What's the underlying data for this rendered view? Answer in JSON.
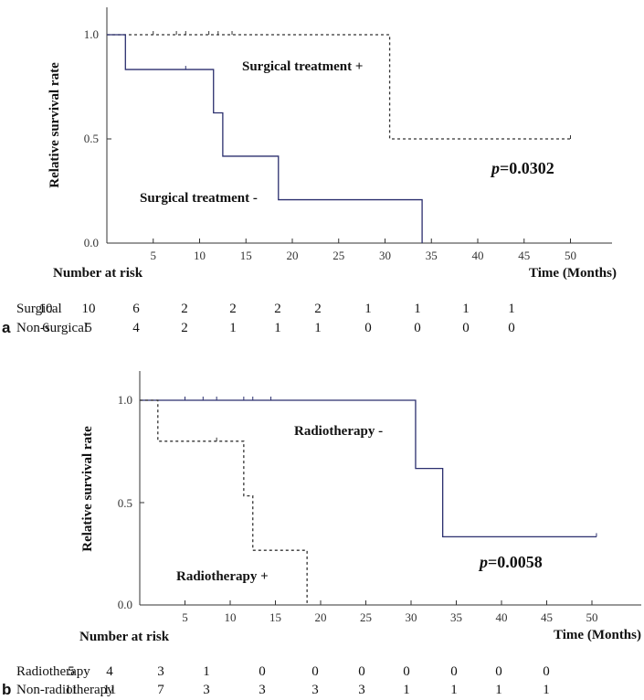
{
  "chart_data": [
    {
      "type": "line",
      "panel_label": "a",
      "ylabel": "Relative survival rate",
      "xlabel": "Time (Months)",
      "xlim": [
        0,
        55
      ],
      "ylim": [
        0,
        1.0
      ],
      "xticks": [
        5,
        10,
        15,
        20,
        25,
        30,
        35,
        40,
        45,
        50
      ],
      "yticks": [
        "0.0",
        "0.5",
        "1.0"
      ],
      "pvalue_prefix": "p",
      "pvalue_value": "=0.0302",
      "series": [
        {
          "name": "Surgical treatment +",
          "style": "dashed",
          "color": "#333333",
          "steps": [
            [
              0,
              1.0
            ],
            [
              30.5,
              0.5
            ],
            [
              50,
              0.5
            ]
          ],
          "censor_times": [
            5,
            7.5,
            8.5,
            11,
            12,
            13.5,
            50
          ]
        },
        {
          "name": "Surgical treatment -",
          "style": "solid",
          "color": "#2b2f6e",
          "steps": [
            [
              0,
              1.0
            ],
            [
              2,
              0.833
            ],
            [
              11.5,
              0.625
            ],
            [
              12.5,
              0.417
            ],
            [
              18.5,
              0.208
            ],
            [
              34,
              0
            ]
          ],
          "censor_times": [
            8.5
          ]
        }
      ],
      "risk_table": {
        "title": "Number at risk",
        "rows": [
          {
            "label": "Surgical",
            "values": [
              "10",
              "10",
              "6",
              "2",
              "2",
              "2",
              "2",
              "1",
              "1",
              "1",
              "1"
            ]
          },
          {
            "label": "Non-surgical",
            "values": [
              "6",
              "5",
              "4",
              "2",
              "1",
              "1",
              "1",
              "0",
              "0",
              "0",
              "0"
            ]
          }
        ]
      }
    },
    {
      "type": "line",
      "panel_label": "b",
      "ylabel": "Relative survival rate",
      "xlabel": "Time (Months)",
      "xlim": [
        0,
        55
      ],
      "ylim": [
        0,
        1.0
      ],
      "xticks": [
        5,
        10,
        15,
        20,
        25,
        30,
        35,
        40,
        45,
        50
      ],
      "yticks": [
        "0.0",
        "0.5",
        "1.0"
      ],
      "pvalue_prefix": "p",
      "pvalue_value": "=0.0058",
      "series": [
        {
          "name": "Radiotherapy -",
          "style": "solid",
          "color": "#2b2f6e",
          "steps": [
            [
              0,
              1.0
            ],
            [
              30.5,
              0.667
            ],
            [
              33.5,
              0.333
            ],
            [
              50.5,
              0.333
            ]
          ],
          "censor_times": [
            5,
            7,
            8.5,
            11.5,
            12.5,
            14.5,
            50.5
          ]
        },
        {
          "name": "Radiotherapy +",
          "style": "dashed",
          "color": "#333333",
          "steps": [
            [
              0,
              1.0
            ],
            [
              2,
              0.8
            ],
            [
              11.5,
              0.533
            ],
            [
              12.5,
              0.267
            ],
            [
              18.5,
              0
            ]
          ],
          "censor_times": [
            8.5
          ]
        }
      ],
      "risk_table": {
        "title": "Number at risk",
        "rows": [
          {
            "label": "Radiotherapy",
            "values": [
              "5",
              "4",
              "3",
              "1",
              "0",
              "0",
              "0",
              "0",
              "0",
              "0",
              "0"
            ]
          },
          {
            "label": "Non-radiotherapy",
            "values": [
              "11",
              "11",
              "7",
              "3",
              "3",
              "3",
              "3",
              "1",
              "1",
              "1",
              "1"
            ]
          }
        ]
      }
    }
  ]
}
